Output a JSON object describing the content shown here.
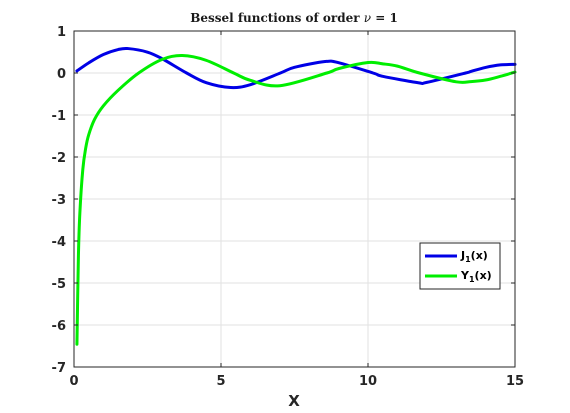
{
  "chart_data": {
    "type": "line",
    "title": {
      "prefix": "Bessel functions of order ",
      "symbol": "ν",
      "suffix": " = 1"
    },
    "xlabel": "X",
    "ylabel": "",
    "xlim": [
      0,
      15
    ],
    "ylim": [
      -7,
      1
    ],
    "xticks": [
      0,
      5,
      10,
      15
    ],
    "yticks": [
      1,
      0,
      -1,
      -2,
      -3,
      -4,
      -5,
      -6,
      -7
    ],
    "grid": true,
    "legend_position": "lower-right",
    "series": [
      {
        "name": "J_1(x)",
        "label_main": "J",
        "label_sub": "1",
        "label_tail": "(x)",
        "color": "#0000e6",
        "x": [
          0.1,
          0.5,
          1.0,
          1.5,
          1.84,
          2.5,
          3.0,
          3.83,
          4.5,
          5.33,
          6.0,
          7.02,
          7.5,
          8.54,
          9.0,
          10.17,
          10.5,
          11.71,
          12.0,
          13.32,
          13.5,
          14.0,
          14.5,
          15.0
        ],
        "y": [
          0.05,
          0.242,
          0.44,
          0.558,
          0.582,
          0.497,
          0.339,
          0.0,
          -0.231,
          -0.346,
          -0.277,
          0.0,
          0.135,
          0.273,
          0.245,
          0.0,
          -0.079,
          -0.232,
          -0.223,
          0.0,
          0.038,
          0.133,
          0.193,
          0.205
        ]
      },
      {
        "name": "Y_1(x)",
        "label_main": "Y",
        "label_sub": "1",
        "label_tail": "(x)",
        "color": "#00ee00",
        "x": [
          0.1,
          0.15,
          0.2,
          0.3,
          0.4,
          0.5,
          0.7,
          1.0,
          1.5,
          2.2,
          3.0,
          3.68,
          4.5,
          5.43,
          6.0,
          7.0,
          8.6,
          9.0,
          10.0,
          10.5,
          11.0,
          11.75,
          13.0,
          13.5,
          14.0,
          14.5,
          15.0
        ],
        "y": [
          -6.459,
          -4.36,
          -3.324,
          -2.293,
          -1.781,
          -1.471,
          -1.103,
          -0.781,
          -0.412,
          0.0,
          0.325,
          0.416,
          0.301,
          0.0,
          -0.175,
          -0.303,
          0.0,
          0.104,
          0.249,
          0.218,
          0.164,
          0.0,
          -0.21,
          -0.204,
          -0.167,
          -0.08,
          0.021
        ]
      }
    ]
  }
}
